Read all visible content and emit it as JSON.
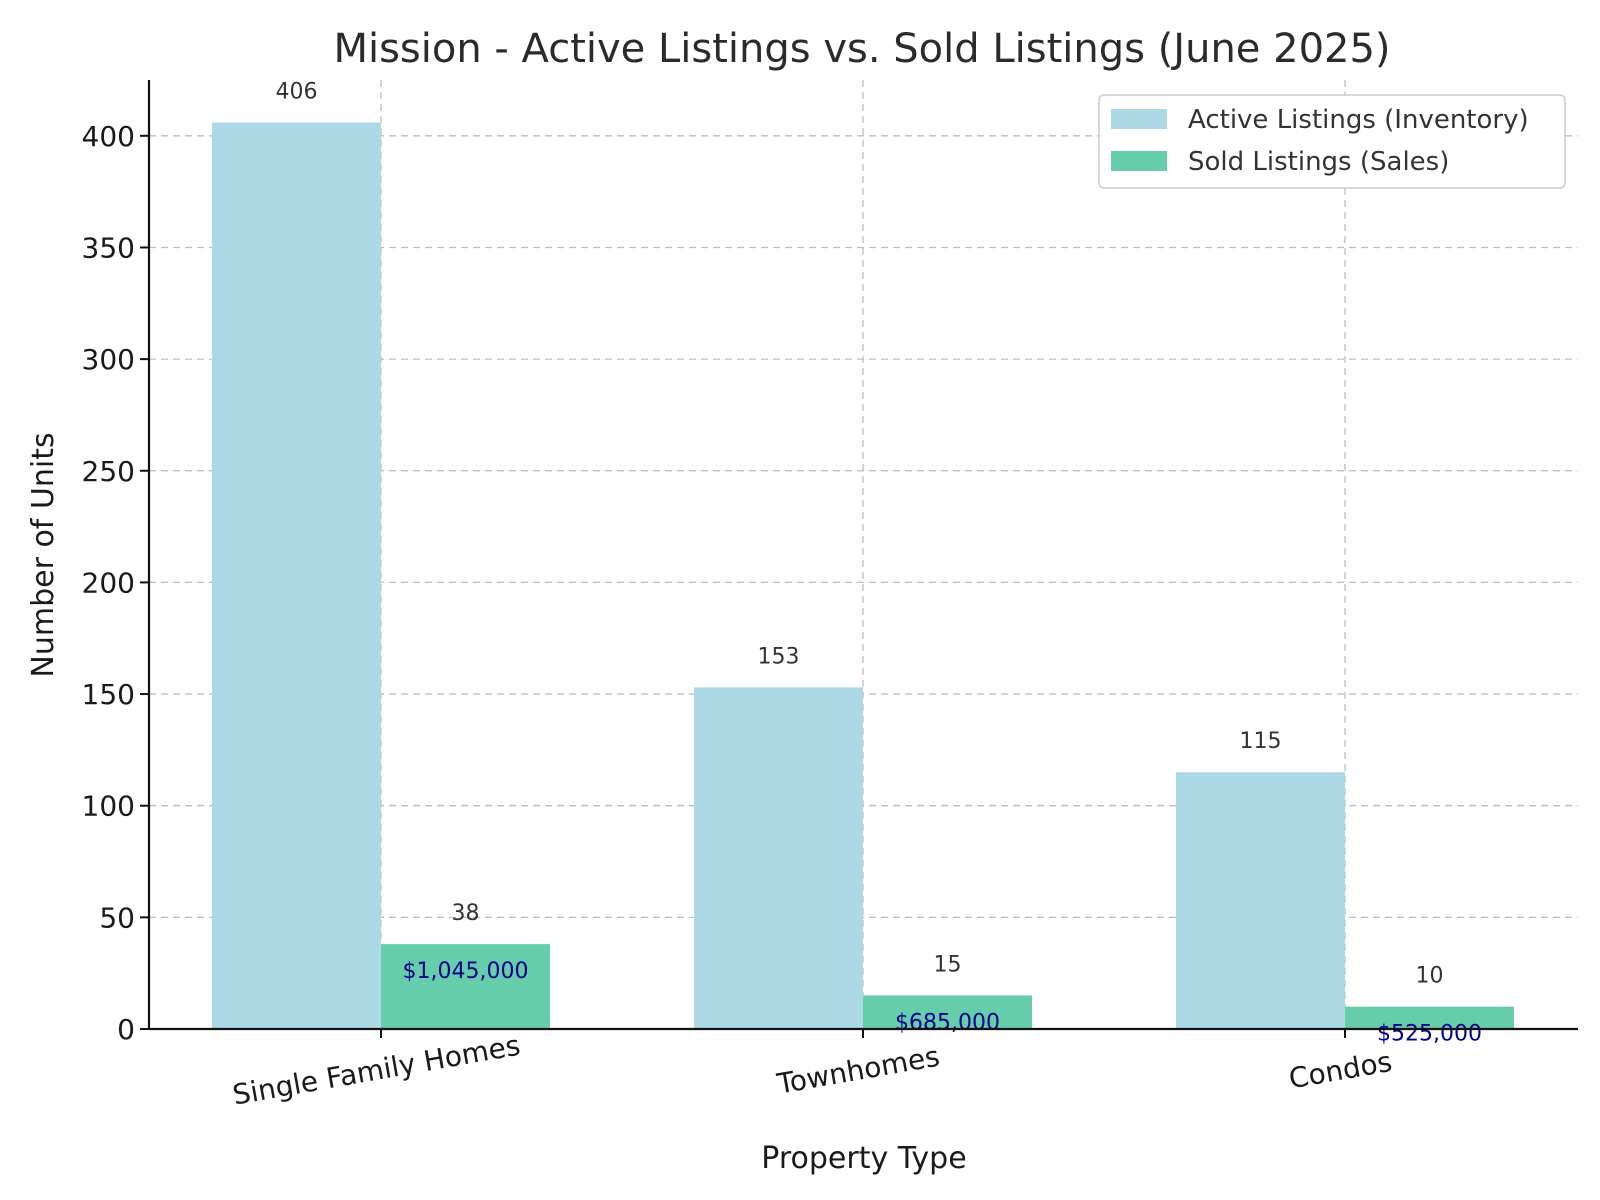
{
  "chart_data": {
    "type": "bar",
    "title": "Mission - Active Listings vs. Sold Listings (June 2025)",
    "xlabel": "Property Type",
    "ylabel": "Number of Units",
    "categories": [
      "Single Family Homes",
      "Townhomes",
      "Condos"
    ],
    "series": [
      {
        "name": "Active Listings (Inventory)",
        "values": [
          406,
          153,
          115
        ],
        "color": "#add8e6"
      },
      {
        "name": "Sold Listings (Sales)",
        "values": [
          38,
          15,
          10
        ],
        "color": "#66cdaa"
      }
    ],
    "value_labels": {
      "active": [
        "406",
        "153",
        "115"
      ],
      "sold": [
        "38",
        "15",
        "10"
      ]
    },
    "sold_price_labels": [
      "$1,045,000",
      "$685,000",
      "$525,000"
    ],
    "price_label_color": "#00008b",
    "ylim": [
      0,
      425
    ],
    "yticks": [
      0,
      50,
      100,
      150,
      200,
      250,
      300,
      350,
      400
    ],
    "ytick_labels": [
      "0",
      "50",
      "100",
      "150",
      "200",
      "250",
      "300",
      "350",
      "400"
    ],
    "grid": true,
    "legend_position": "top-right"
  }
}
